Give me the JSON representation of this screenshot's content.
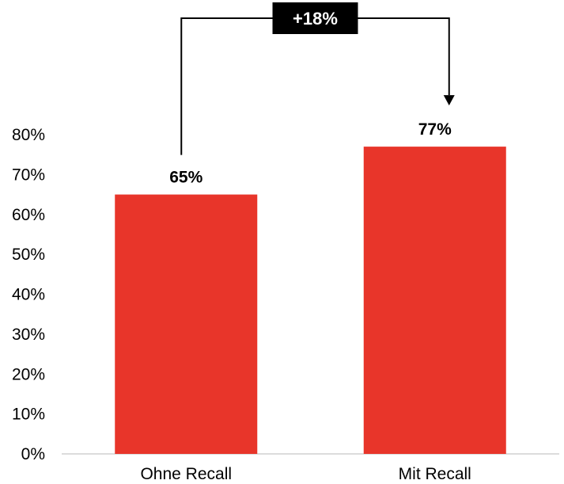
{
  "chart_data": {
    "type": "bar",
    "categories": [
      "Ohne Recall",
      "Mit Recall"
    ],
    "values": [
      65,
      77
    ],
    "value_labels": [
      "65%",
      "77%"
    ],
    "ylim": [
      0,
      80
    ],
    "yticks": [
      0,
      10,
      20,
      30,
      40,
      50,
      60,
      70,
      80
    ],
    "ytick_labels": [
      "0%",
      "10%",
      "20%",
      "30%",
      "40%",
      "50%",
      "60%",
      "70%",
      "80%"
    ],
    "grid": false,
    "legend": "none",
    "bar_color": "#e8352a",
    "annotation": {
      "label": "+18%",
      "from_category": "Ohne Recall",
      "to_category": "Mit Recall",
      "box_color": "#000000",
      "text_color": "#ffffff"
    }
  }
}
